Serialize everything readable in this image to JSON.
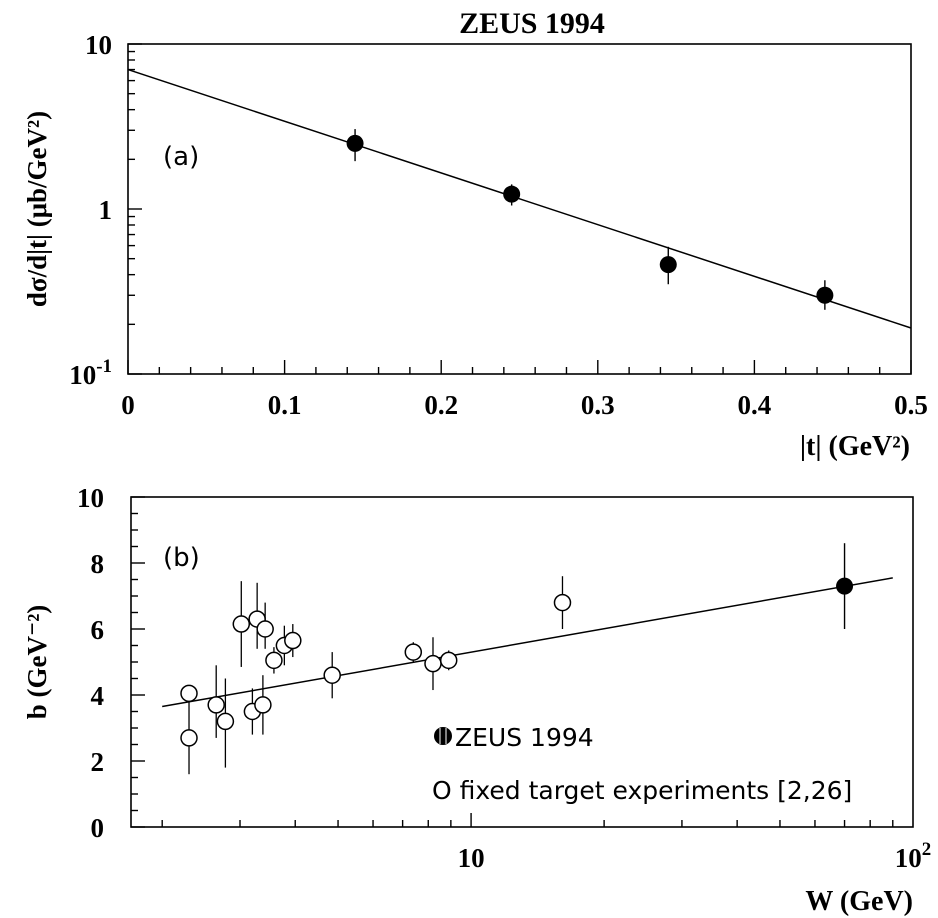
{
  "title": "ZEUS 1994",
  "chart_data": [
    {
      "type": "scatter",
      "panel_label": "(a)",
      "ylabel": "dσ/d|t| (μb/GeV²)",
      "xlabel": "|t| (GeV²)",
      "xlim": [
        0,
        0.5
      ],
      "ylim": [
        0.1,
        10
      ],
      "y_scale": "log",
      "x_ticks": [
        "0",
        "0.1",
        "0.2",
        "0.3",
        "0.4",
        "0.5"
      ],
      "y_ticks": [
        {
          "value": 10,
          "label": "10",
          "exp": ""
        },
        {
          "value": 1,
          "label": "1",
          "exp": ""
        },
        {
          "value": 0.1,
          "label": "10",
          "exp": "-1"
        }
      ],
      "series": [
        {
          "marker": "filled-circle",
          "points": [
            {
              "x": 0.145,
              "y": 2.5,
              "err_lo": 0.55,
              "err_hi": 0.55
            },
            {
              "x": 0.245,
              "y": 1.23,
              "err_lo": 0.18,
              "err_hi": 0.18
            },
            {
              "x": 0.345,
              "y": 0.46,
              "err_lo": 0.11,
              "err_hi": 0.13
            },
            {
              "x": 0.445,
              "y": 0.3,
              "err_lo": 0.055,
              "err_hi": 0.07
            }
          ]
        }
      ],
      "fit_line": {
        "x": [
          0,
          0.5
        ],
        "y": [
          7.0,
          0.19
        ]
      }
    },
    {
      "type": "scatter",
      "panel_label": "(b)",
      "ylabel": "b (GeV⁻²)",
      "xlabel": "W (GeV)",
      "x_scale": "log",
      "xlim": [
        1.7,
        100
      ],
      "ylim": [
        0,
        10
      ],
      "x_ticks": [
        {
          "value": 10,
          "label": "10",
          "exp": ""
        },
        {
          "value": 100,
          "label": "10",
          "exp": "2"
        }
      ],
      "y_ticks": [
        "0",
        "2",
        "4",
        "6",
        "8",
        "10"
      ],
      "series": [
        {
          "name": "ZEUS 1994",
          "marker": "filled-circle",
          "points": [
            {
              "x": 70,
              "y": 7.3,
              "err_lo": 1.3,
              "err_hi": 1.3
            }
          ]
        },
        {
          "name": "fixed target experiments [2,26]",
          "marker": "open-circle",
          "points": [
            {
              "x": 2.3,
              "y": 4.05,
              "err_lo": 0.1,
              "err_hi": 0.1
            },
            {
              "x": 2.3,
              "y": 2.7,
              "err_lo": 1.1,
              "err_hi": 1.1
            },
            {
              "x": 2.65,
              "y": 3.7,
              "err_lo": 1.0,
              "err_hi": 1.2
            },
            {
              "x": 2.78,
              "y": 3.2,
              "err_lo": 1.4,
              "err_hi": 1.3
            },
            {
              "x": 3.02,
              "y": 6.15,
              "err_lo": 1.3,
              "err_hi": 1.3
            },
            {
              "x": 3.2,
              "y": 3.5,
              "err_lo": 0.7,
              "err_hi": 0.7
            },
            {
              "x": 3.28,
              "y": 6.3,
              "err_lo": 0.9,
              "err_hi": 1.1
            },
            {
              "x": 3.38,
              "y": 3.7,
              "err_lo": 0.9,
              "err_hi": 0.9
            },
            {
              "x": 3.42,
              "y": 6.0,
              "err_lo": 0.6,
              "err_hi": 0.8
            },
            {
              "x": 3.58,
              "y": 5.05,
              "err_lo": 0.4,
              "err_hi": 0.4
            },
            {
              "x": 3.78,
              "y": 5.5,
              "err_lo": 0.6,
              "err_hi": 0.6
            },
            {
              "x": 3.95,
              "y": 5.65,
              "err_lo": 0.5,
              "err_hi": 0.5
            },
            {
              "x": 4.85,
              "y": 4.6,
              "err_lo": 0.7,
              "err_hi": 0.7
            },
            {
              "x": 7.4,
              "y": 5.3,
              "err_lo": 0.3,
              "err_hi": 0.3
            },
            {
              "x": 8.2,
              "y": 4.95,
              "err_lo": 0.8,
              "err_hi": 0.8
            },
            {
              "x": 8.9,
              "y": 5.05,
              "err_lo": 0.3,
              "err_hi": 0.3
            },
            {
              "x": 16.1,
              "y": 6.8,
              "err_lo": 0.8,
              "err_hi": 0.8
            }
          ]
        }
      ],
      "fit_line": {
        "x": [
          2.0,
          90
        ],
        "y": [
          3.65,
          7.55
        ]
      },
      "legend": [
        {
          "marker": "filled-circle",
          "label": "ZEUS 1994"
        },
        {
          "marker": "open-circle",
          "label": "O fixed target experiments [2,26]"
        }
      ]
    }
  ]
}
